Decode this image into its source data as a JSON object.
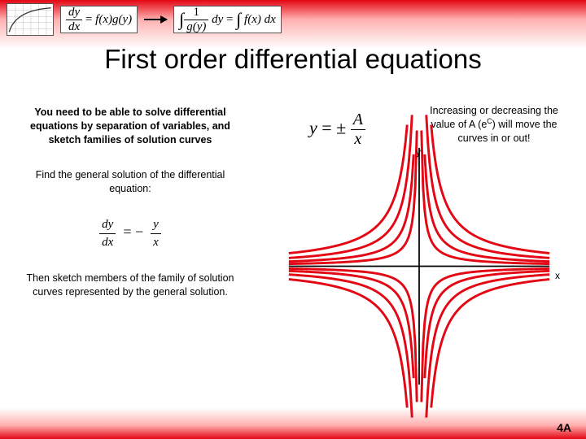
{
  "header": {
    "box1_type": "mini-graph",
    "box2_formula": "dy/dx = f(x)g(y)",
    "box3_formula": "∫ 1/g(y) dy = ∫ f(x) dx"
  },
  "title": "First order differential equations",
  "left": {
    "intro": "You need to be able to solve differential equations by separation of variables, and sketch families of solution curves",
    "task1": "Find the general solution of the differential equation:",
    "eq": "dy/dx = − y/x",
    "task2": "Then sketch members of the family of solution curves represented by the general solution."
  },
  "main_equation": "y = ± A / x",
  "note": {
    "text_pre": "Increasing or decreasing the value of A (e",
    "sup": "C",
    "text_post": ") will move the curves in or out!"
  },
  "plot": {
    "type": "hyperbola-family",
    "x_axis_label": "x",
    "y_axis_label": "y",
    "axis_color": "#000000",
    "curve_color": "#e30613",
    "curve_width": 3,
    "background": "#ffffff",
    "xlim": [
      -10,
      10
    ],
    "ylim": [
      -10,
      10
    ],
    "A_values": [
      2,
      4,
      7,
      11
    ],
    "signs": [
      1,
      -1
    ]
  },
  "footer": "4A",
  "colors": {
    "gradient_red": "#e30613",
    "gradient_mid": "#ffb0b0",
    "text": "#000000"
  },
  "typography": {
    "title_fontsize": 33,
    "body_fontsize": 12.5,
    "equation_fontsize": 22,
    "font_family_body": "Comic Sans MS / Trebuchet MS",
    "font_family_math": "Times New Roman italic"
  }
}
